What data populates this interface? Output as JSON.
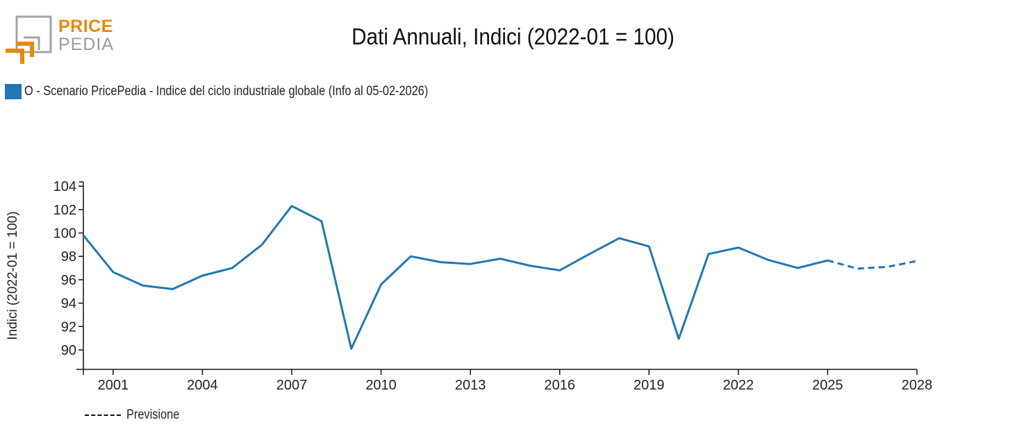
{
  "logo": {
    "word1": "PRICE",
    "word2": "PEDIA",
    "colors": {
      "orange": "#e8890c",
      "gray": "#9a9a9a"
    }
  },
  "header": {
    "title": "Dati Annuali, Indici (2022-01 = 100)"
  },
  "legend": {
    "label": "O - Scenario PricePedia - Indice del ciclo industriale globale (Info al 05-02-2026)",
    "color": "#1f77b4"
  },
  "forecast_legend": {
    "label": "Previsione"
  },
  "axes": {
    "ylabel": "Indici (2022-01 = 100)",
    "yticks": [
      "90",
      "92",
      "94",
      "96",
      "98",
      "100",
      "102",
      "104"
    ],
    "xticks": [
      "2001",
      "2004",
      "2007",
      "2010",
      "2013",
      "2016",
      "2019",
      "2022",
      "2025",
      "2028"
    ]
  },
  "chart_data": {
    "type": "line",
    "title": "Dati Annuali, Indici (2022-01 = 100)",
    "xlabel": "",
    "ylabel": "Indici (2022-01 = 100)",
    "xlim": [
      2000,
      2028
    ],
    "ylim": [
      88.3,
      104.3
    ],
    "grid": false,
    "legend_position": "top-left",
    "x": [
      2000,
      2001,
      2002,
      2003,
      2004,
      2005,
      2006,
      2007,
      2008,
      2009,
      2010,
      2011,
      2012,
      2013,
      2014,
      2015,
      2016,
      2017,
      2018,
      2019,
      2020,
      2021,
      2022,
      2023,
      2024,
      2025,
      2026,
      2027,
      2028
    ],
    "series": [
      {
        "name": "O - Scenario PricePedia - Indice del ciclo industriale globale (Info al 05-02-2026)",
        "color": "#1f77b4",
        "values": [
          99.8,
          96.65,
          95.5,
          95.2,
          96.35,
          97.0,
          99.0,
          102.3,
          101.0,
          90.1,
          95.6,
          98.0,
          97.5,
          97.35,
          97.8,
          97.2,
          96.8,
          98.2,
          99.55,
          98.85,
          90.95,
          98.2,
          98.75,
          97.7,
          97.0,
          97.65,
          96.95,
          97.1,
          97.6
        ],
        "forecast_from": 2025
      }
    ],
    "annotations": [
      "Previsione (dashed) = forecast 2025-2028"
    ]
  }
}
